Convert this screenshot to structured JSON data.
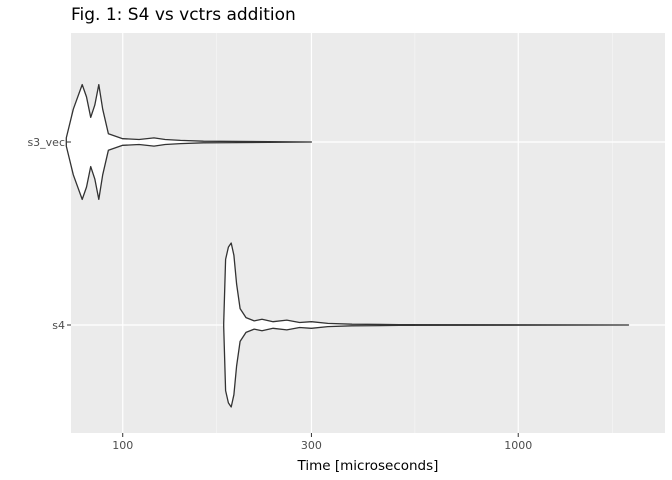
{
  "chart_data": {
    "type": "violin",
    "title": "Fig. 1: S4 vs vctrs addition",
    "xlabel": "Time [microseconds]",
    "ylabel": "",
    "x_scale": "log10",
    "xlim": [
      74,
      2350
    ],
    "x_ticks": [
      100,
      300,
      1000
    ],
    "x_tick_labels": [
      "100",
      "300",
      "1000"
    ],
    "x_minor_ticks": [
      30,
      172.7,
      547.7,
      1732
    ],
    "categories": [
      "s3_vec",
      "s4"
    ],
    "grid": true,
    "series": [
      {
        "name": "s3_vec",
        "min": 72,
        "max": 300,
        "density_profile": [
          [
            72,
            0.05
          ],
          [
            75,
            0.4
          ],
          [
            79,
            0.7
          ],
          [
            81,
            0.55
          ],
          [
            83,
            0.3
          ],
          [
            85,
            0.45
          ],
          [
            87,
            0.7
          ],
          [
            89,
            0.4
          ],
          [
            92,
            0.1
          ],
          [
            100,
            0.04
          ],
          [
            110,
            0.03
          ],
          [
            120,
            0.05
          ],
          [
            128,
            0.03
          ],
          [
            140,
            0.02
          ],
          [
            160,
            0.01
          ],
          [
            300,
            0.0
          ]
        ]
      },
      {
        "name": "s4",
        "min": 180,
        "max": 1900,
        "density_profile": [
          [
            180,
            0.02
          ],
          [
            182,
            0.8
          ],
          [
            185,
            0.95
          ],
          [
            188,
            1.0
          ],
          [
            191,
            0.85
          ],
          [
            194,
            0.5
          ],
          [
            198,
            0.2
          ],
          [
            205,
            0.09
          ],
          [
            215,
            0.05
          ],
          [
            225,
            0.07
          ],
          [
            240,
            0.04
          ],
          [
            260,
            0.06
          ],
          [
            280,
            0.03
          ],
          [
            300,
            0.04
          ],
          [
            330,
            0.02
          ],
          [
            380,
            0.01
          ],
          [
            500,
            0.005
          ],
          [
            1900,
            0.0
          ]
        ]
      }
    ]
  }
}
